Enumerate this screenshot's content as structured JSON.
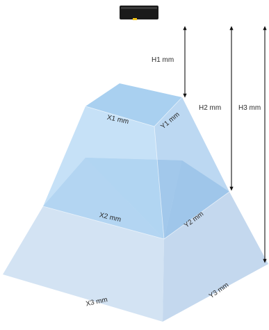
{
  "diagram": {
    "sensor_icon": "sensor-device-icon",
    "colors": {
      "outer_face_left": "#d3e3f3",
      "outer_face_right": "#c4d8ee",
      "mid_face_left": "#9fc4e6",
      "mid_face_right": "#8db6dd",
      "top_face": "#a9d0f0",
      "upper_face_left": "#b8d9f5",
      "upper_face_right": "#a6cbed",
      "sensor_body": "#1a1a1a",
      "sensor_led": "#f2c318"
    },
    "labels": {
      "x1": "X1 mm",
      "y1": "Y1 mm",
      "x2": "X2 mm",
      "y2": "Y2 mm",
      "x3": "X3 mm",
      "y3": "Y3 mm",
      "h1": "H1 mm",
      "h2": "H2 mm",
      "h3": "H3 mm"
    }
  }
}
